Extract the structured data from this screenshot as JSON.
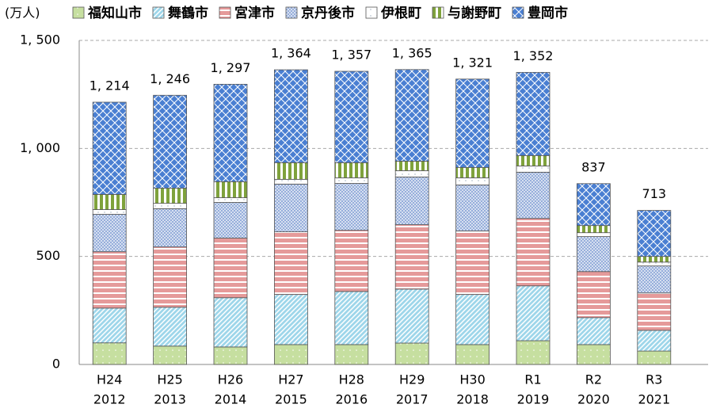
{
  "chart_data": {
    "type": "stacked_bar",
    "y_label": "(万人)",
    "categories": [
      "H24",
      "H25",
      "H26",
      "H27",
      "H28",
      "H29",
      "H30",
      "R1",
      "R2",
      "R3"
    ],
    "years": [
      2012,
      2013,
      2014,
      2015,
      2016,
      2017,
      2018,
      2019,
      2020,
      2021
    ],
    "series": [
      {
        "name": "福知山市",
        "color": "#c6dfa0",
        "pattern": "dots",
        "values": [
          100,
          85,
          81,
          92,
          92,
          99,
          92,
          110,
          92,
          62
        ]
      },
      {
        "name": "舞鶴市",
        "color": "#9ed6ea",
        "pattern": "diag",
        "values": [
          161,
          180,
          228,
          232,
          246,
          250,
          232,
          254,
          125,
          96
        ]
      },
      {
        "name": "宮津市",
        "color": "#e59a9a",
        "pattern": "hstripe",
        "values": [
          261,
          279,
          276,
          290,
          283,
          298,
          294,
          312,
          213,
          173
        ]
      },
      {
        "name": "京丹後市",
        "color": "#8ea8d8",
        "pattern": "cross",
        "values": [
          173,
          177,
          165,
          221,
          217,
          221,
          213,
          214,
          162,
          125
        ]
      },
      {
        "name": "伊根町",
        "color": "#ffffff",
        "pattern": "plain",
        "values": [
          22,
          25,
          22,
          22,
          26,
          29,
          33,
          29,
          18,
          18
        ]
      },
      {
        "name": "与謝野町",
        "color": "#7fa23c",
        "pattern": "vstripe",
        "values": [
          70,
          70,
          74,
          77,
          70,
          44,
          48,
          48,
          33,
          26
        ]
      },
      {
        "name": "豊岡市",
        "color": "#4a7fd2",
        "pattern": "diamond",
        "values": [
          427,
          430,
          451,
          430,
          423,
          424,
          409,
          385,
          194,
          213
        ]
      }
    ],
    "totals": [
      1214,
      1246,
      1297,
      1364,
      1357,
      1365,
      1321,
      1352,
      837,
      713
    ],
    "total_labels": [
      "1, 214",
      "1, 246",
      "1, 297",
      "1, 364",
      "1, 357",
      "1, 365",
      "1, 321",
      "1, 352",
      "837",
      "713"
    ],
    "ylim": [
      0,
      1500
    ],
    "yticks": [
      0,
      500,
      {
        "value": 1000,
        "label": "1, 000"
      },
      {
        "value": 1500,
        "label": "1, 500"
      }
    ],
    "grid": true
  }
}
